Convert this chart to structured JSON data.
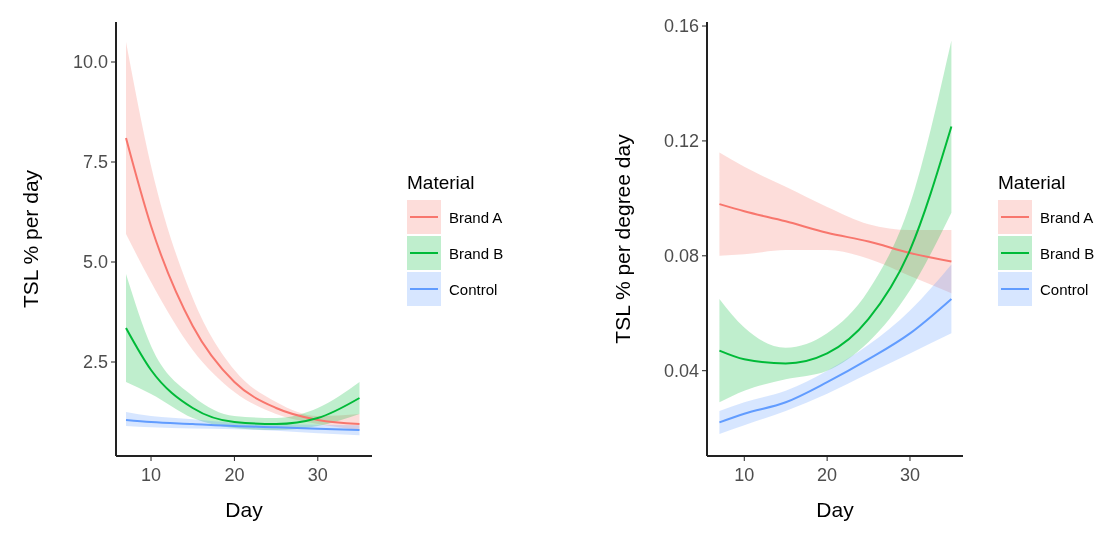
{
  "chart_data": [
    {
      "type": "line",
      "xlabel": "Day",
      "ylabel": "TSL % per day",
      "legend_title": "Material",
      "legend": "right",
      "x": [
        7,
        10,
        15,
        20,
        25,
        30,
        35
      ],
      "xlim": [
        5.8,
        36.5
      ],
      "ylim": [
        0.15,
        11
      ],
      "xticks": [
        10,
        20,
        30
      ],
      "yticks": [
        2.5,
        {
          "value": 5,
          "label": "5.0"
        },
        7.5,
        {
          "value": 10,
          "label": "10.0"
        }
      ],
      "series": [
        {
          "name": "Brand A",
          "color": "#f8766d",
          "values": [
            8.1,
            5.9,
            3.4,
            2.0,
            1.35,
            1.05,
            0.95
          ],
          "lower": [
            5.7,
            4.5,
            2.8,
            1.75,
            1.2,
            0.95,
            0.8
          ],
          "upper": [
            10.5,
            7.4,
            4.1,
            2.3,
            1.5,
            1.15,
            1.2
          ]
        },
        {
          "name": "Brand B",
          "color": "#00ba38",
          "values": [
            3.35,
            2.3,
            1.35,
            1.0,
            0.95,
            1.1,
            1.6
          ],
          "lower": [
            2.0,
            1.7,
            1.1,
            0.85,
            0.8,
            0.9,
            1.2
          ],
          "upper": [
            4.7,
            2.9,
            1.65,
            1.15,
            1.1,
            1.35,
            2.0
          ]
        },
        {
          "name": "Control",
          "color": "#619cff",
          "values": [
            1.05,
            1.0,
            0.95,
            0.9,
            0.87,
            0.83,
            0.8
          ],
          "lower": [
            0.9,
            0.87,
            0.84,
            0.82,
            0.78,
            0.72,
            0.67
          ],
          "upper": [
            1.25,
            1.15,
            1.07,
            0.98,
            0.95,
            0.93,
            0.92
          ]
        }
      ]
    },
    {
      "type": "line",
      "xlabel": "Day",
      "ylabel": "TSL % per degree day",
      "legend_title": "Material",
      "legend": "right",
      "x": [
        7,
        10,
        15,
        20,
        25,
        30,
        35
      ],
      "xlim": [
        5.5,
        36.4
      ],
      "ylim": [
        0.0103,
        0.1614
      ],
      "xticks": [
        10,
        20,
        30
      ],
      "yticks": [
        0.04,
        0.08,
        0.12,
        0.16
      ],
      "series": [
        {
          "name": "Brand A",
          "color": "#f8766d",
          "values": [
            0.098,
            0.0955,
            0.092,
            0.088,
            0.085,
            0.081,
            0.078
          ],
          "lower": [
            0.08,
            0.0805,
            0.082,
            0.082,
            0.079,
            0.073,
            0.067
          ],
          "upper": [
            0.116,
            0.111,
            0.104,
            0.097,
            0.091,
            0.089,
            0.089
          ]
        },
        {
          "name": "Brand B",
          "color": "#00ba38",
          "values": [
            0.047,
            0.044,
            0.0425,
            0.046,
            0.058,
            0.082,
            0.125
          ],
          "lower": [
            0.029,
            0.033,
            0.037,
            0.04,
            0.05,
            0.068,
            0.095
          ],
          "upper": [
            0.065,
            0.055,
            0.048,
            0.053,
            0.068,
            0.098,
            0.155
          ]
        },
        {
          "name": "Control",
          "color": "#619cff",
          "values": [
            0.022,
            0.025,
            0.029,
            0.036,
            0.044,
            0.053,
            0.065
          ],
          "lower": [
            0.018,
            0.021,
            0.026,
            0.032,
            0.039,
            0.046,
            0.053
          ],
          "upper": [
            0.026,
            0.029,
            0.033,
            0.04,
            0.049,
            0.061,
            0.077
          ]
        }
      ]
    }
  ]
}
